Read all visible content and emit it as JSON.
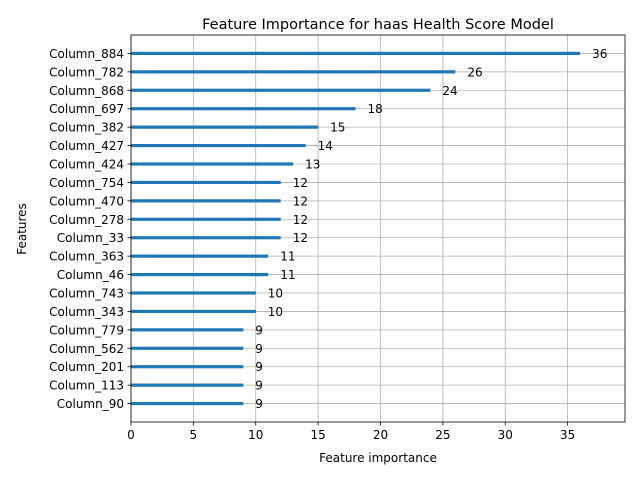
{
  "chart_data": {
    "type": "bar",
    "orientation": "horizontal",
    "title": "Feature Importance for haas Health Score Model",
    "xlabel": "Feature importance",
    "ylabel": "Features",
    "xlim": [
      0,
      39.6
    ],
    "xticks": [
      0,
      5,
      10,
      15,
      20,
      25,
      30,
      35
    ],
    "grid": true,
    "bar_color": "#1f77b4",
    "categories": [
      "Column_884",
      "Column_782",
      "Column_868",
      "Column_697",
      "Column_382",
      "Column_427",
      "Column_424",
      "Column_754",
      "Column_470",
      "Column_278",
      "Column_33",
      "Column_363",
      "Column_46",
      "Column_743",
      "Column_343",
      "Column_779",
      "Column_562",
      "Column_201",
      "Column_113",
      "Column_90"
    ],
    "values": [
      36,
      26,
      24,
      18,
      15,
      14,
      13,
      12,
      12,
      12,
      12,
      11,
      11,
      10,
      10,
      9,
      9,
      9,
      9,
      9
    ]
  }
}
